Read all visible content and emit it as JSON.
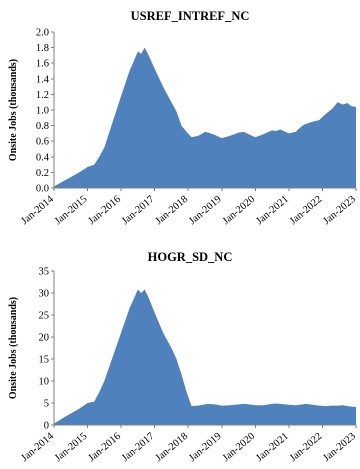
{
  "chart_data": [
    {
      "type": "area",
      "title": "USREF_INTREF_NC",
      "ylabel": "Onsite Jobs (thousands)",
      "xlabel": "",
      "ylim": [
        0,
        2.0
      ],
      "yticks": [
        "0.0",
        "0.2",
        "0.4",
        "0.6",
        "0.8",
        "1.0",
        "1.2",
        "1.4",
        "1.6",
        "1.8",
        "2.0"
      ],
      "xticks": [
        "Jan-2014",
        "Jan-2015",
        "Jan-2016",
        "Jan-2017",
        "Jan-2018",
        "Jan-2019",
        "Jan-2020",
        "Jan-2021",
        "Jan-2022",
        "Jan-2023"
      ],
      "color": "#4f81bd",
      "grid": false,
      "x": [
        2014.0,
        2014.25,
        2014.5,
        2014.75,
        2015.0,
        2015.2,
        2015.35,
        2015.5,
        2015.75,
        2016.0,
        2016.25,
        2016.5,
        2016.6,
        2016.7,
        2016.8,
        2017.0,
        2017.25,
        2017.5,
        2017.65,
        2017.8,
        2017.95,
        2018.1,
        2018.3,
        2018.5,
        2018.6,
        2018.8,
        2019.0,
        2019.25,
        2019.5,
        2019.65,
        2019.8,
        2020.0,
        2020.25,
        2020.5,
        2020.6,
        2020.75,
        2021.0,
        2021.2,
        2021.4,
        2021.5,
        2021.7,
        2021.9,
        2022.1,
        2022.3,
        2022.45,
        2022.6,
        2022.75,
        2022.85,
        2023.0
      ],
      "values": [
        0.02,
        0.08,
        0.14,
        0.2,
        0.27,
        0.3,
        0.4,
        0.52,
        0.85,
        1.18,
        1.5,
        1.75,
        1.72,
        1.8,
        1.72,
        1.53,
        1.3,
        1.1,
        0.98,
        0.8,
        0.72,
        0.65,
        0.67,
        0.72,
        0.71,
        0.68,
        0.64,
        0.67,
        0.71,
        0.72,
        0.69,
        0.65,
        0.69,
        0.74,
        0.73,
        0.75,
        0.7,
        0.72,
        0.8,
        0.82,
        0.85,
        0.87,
        0.95,
        1.02,
        1.1,
        1.07,
        1.09,
        1.05,
        1.04
      ]
    },
    {
      "type": "area",
      "title": "HOGR_SD_NC",
      "ylabel": "Onsite Jobs (thousands)",
      "xlabel": "",
      "ylim": [
        0,
        35
      ],
      "yticks": [
        "0",
        "5",
        "10",
        "15",
        "20",
        "25",
        "30",
        "35"
      ],
      "xticks": [
        "Jan-2014",
        "Jan-2015",
        "Jan-2016",
        "Jan-2017",
        "Jan-2018",
        "Jan-2019",
        "Jan-2020",
        "Jan-2021",
        "Jan-2022",
        "Jan-2023"
      ],
      "color": "#4f81bd",
      "grid": false,
      "x": [
        2014.0,
        2014.25,
        2014.5,
        2014.75,
        2015.0,
        2015.2,
        2015.35,
        2015.5,
        2015.75,
        2016.0,
        2016.25,
        2016.5,
        2016.6,
        2016.7,
        2016.8,
        2017.0,
        2017.25,
        2017.5,
        2017.65,
        2017.8,
        2017.95,
        2018.1,
        2018.3,
        2018.5,
        2018.6,
        2018.8,
        2019.0,
        2019.25,
        2019.5,
        2019.65,
        2019.8,
        2020.0,
        2020.25,
        2020.5,
        2020.6,
        2020.75,
        2021.0,
        2021.2,
        2021.4,
        2021.5,
        2021.7,
        2021.9,
        2022.1,
        2022.3,
        2022.45,
        2022.6,
        2022.75,
        2022.85,
        2023.0
      ],
      "values": [
        0.3,
        1.5,
        2.6,
        3.7,
        5.0,
        5.3,
        7.5,
        10.0,
        15.5,
        21.0,
        26.5,
        30.8,
        30.0,
        30.8,
        29.3,
        25.5,
        21.0,
        17.5,
        15.0,
        11.5,
        7.5,
        4.3,
        4.4,
        4.7,
        4.8,
        4.7,
        4.4,
        4.5,
        4.7,
        4.8,
        4.7,
        4.5,
        4.5,
        4.8,
        4.9,
        4.8,
        4.6,
        4.5,
        4.7,
        4.8,
        4.6,
        4.4,
        4.3,
        4.4,
        4.4,
        4.5,
        4.3,
        4.2,
        4.1
      ]
    }
  ]
}
